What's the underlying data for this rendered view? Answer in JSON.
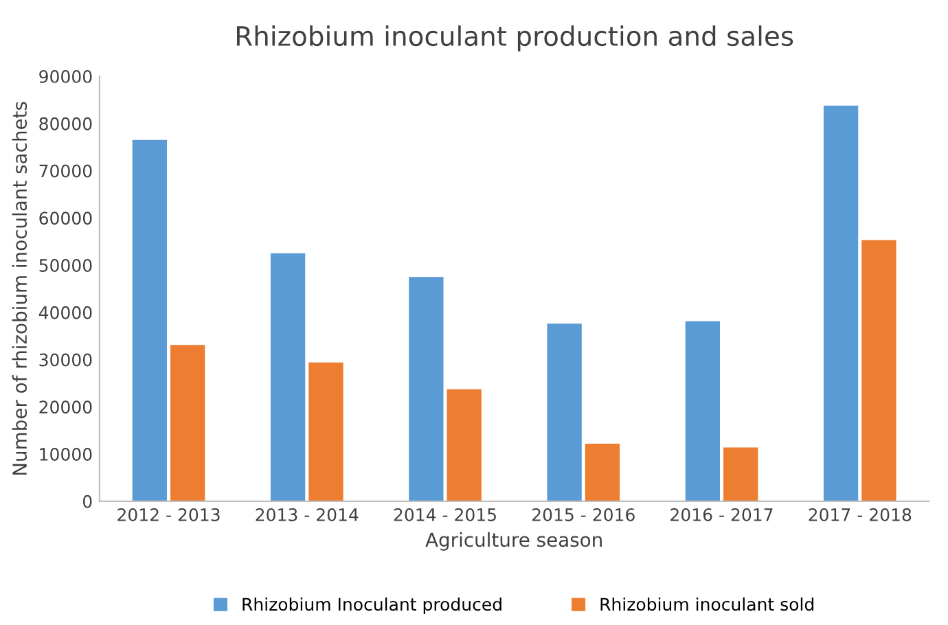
{
  "chart_data": {
    "type": "bar",
    "title": "Rhizobium inoculant production and sales",
    "xlabel": "Agriculture season",
    "ylabel": "Number of rhizobium inoculant sachets",
    "categories": [
      "2012 - 2013",
      "2013 - 2014",
      "2014 - 2015",
      "2015 - 2016",
      "2016 - 2017",
      "2017 - 2018"
    ],
    "series": [
      {
        "name": "Rhizobium Inoculant produced",
        "color": "#5b9bd5",
        "values": [
          76500,
          52500,
          47500,
          37600,
          38100,
          83800
        ]
      },
      {
        "name": "Rhizobium inoculant sold",
        "color": "#ed7d31",
        "values": [
          33100,
          29400,
          23700,
          12200,
          11400,
          55300
        ]
      }
    ],
    "ylim": [
      0,
      90000
    ],
    "yticks": [
      0,
      10000,
      20000,
      30000,
      40000,
      50000,
      60000,
      70000,
      80000,
      90000
    ],
    "grid": false,
    "legend": "bottom"
  }
}
